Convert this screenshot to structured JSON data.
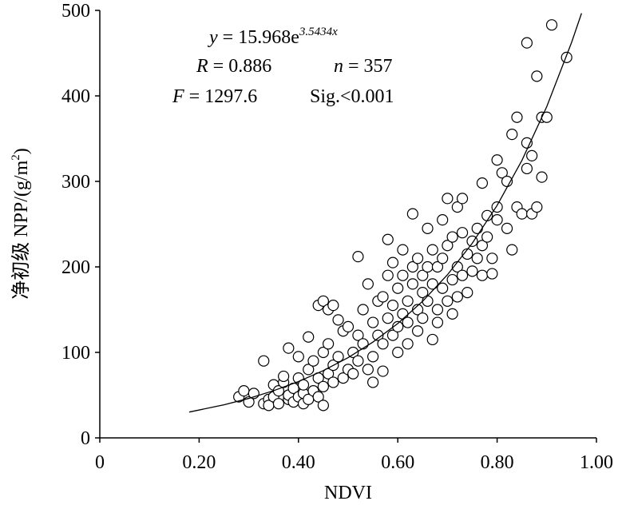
{
  "chart_data": {
    "type": "scatter",
    "equation_parts": [
      "y",
      " = 15.968e",
      "3.5434x"
    ],
    "stats_parts": [
      "R",
      " = 0.886",
      "n",
      " = 357"
    ],
    "test_parts": [
      "F",
      " = 1297.6",
      "Sig.<0.001"
    ],
    "xlabel": "NDVI",
    "ylabel_parts": [
      "净初级 NPP/(g/m",
      "2",
      ")"
    ],
    "xlim": [
      0,
      1
    ],
    "ylim": [
      0,
      500
    ],
    "xticks": [
      0,
      {
        "value": 0.2,
        "label": "0.20"
      },
      {
        "value": 0.4,
        "label": "0.40"
      },
      {
        "value": 0.6,
        "label": "0.60"
      },
      {
        "value": 0.8,
        "label": "0.80"
      },
      {
        "value": 1,
        "label": "1.00"
      }
    ],
    "yticks": [
      0,
      100,
      200,
      300,
      400,
      500
    ],
    "series": [
      {
        "kind": "points",
        "color": "#000000",
        "fill": "#ffffff",
        "x": [
          0.28,
          0.29,
          0.3,
          0.31,
          0.33,
          0.33,
          0.34,
          0.34,
          0.35,
          0.35,
          0.36,
          0.36,
          0.37,
          0.37,
          0.38,
          0.38,
          0.38,
          0.39,
          0.39,
          0.4,
          0.4,
          0.4,
          0.41,
          0.41,
          0.41,
          0.42,
          0.42,
          0.42,
          0.43,
          0.43,
          0.44,
          0.44,
          0.44,
          0.45,
          0.45,
          0.45,
          0.45,
          0.46,
          0.46,
          0.46,
          0.47,
          0.47,
          0.47,
          0.48,
          0.48,
          0.49,
          0.49,
          0.5,
          0.5,
          0.51,
          0.51,
          0.52,
          0.52,
          0.52,
          0.53,
          0.53,
          0.54,
          0.54,
          0.55,
          0.55,
          0.55,
          0.56,
          0.56,
          0.57,
          0.57,
          0.57,
          0.58,
          0.58,
          0.58,
          0.59,
          0.59,
          0.59,
          0.6,
          0.6,
          0.6,
          0.61,
          0.61,
          0.61,
          0.62,
          0.62,
          0.62,
          0.63,
          0.63,
          0.63,
          0.64,
          0.64,
          0.64,
          0.65,
          0.65,
          0.65,
          0.66,
          0.66,
          0.66,
          0.67,
          0.67,
          0.67,
          0.68,
          0.68,
          0.68,
          0.69,
          0.69,
          0.69,
          0.7,
          0.7,
          0.7,
          0.71,
          0.71,
          0.71,
          0.72,
          0.72,
          0.72,
          0.73,
          0.73,
          0.73,
          0.74,
          0.74,
          0.75,
          0.75,
          0.76,
          0.76,
          0.77,
          0.77,
          0.77,
          0.78,
          0.78,
          0.79,
          0.79,
          0.8,
          0.8,
          0.8,
          0.81,
          0.82,
          0.82,
          0.83,
          0.83,
          0.84,
          0.84,
          0.85,
          0.86,
          0.86,
          0.86,
          0.87,
          0.87,
          0.88,
          0.88,
          0.89,
          0.89,
          0.9,
          0.91,
          0.94
        ],
        "values": [
          48,
          55,
          42,
          52,
          40,
          90,
          45,
          38,
          48,
          62,
          40,
          55,
          65,
          72,
          45,
          50,
          105,
          58,
          42,
          48,
          70,
          95,
          52,
          40,
          62,
          80,
          118,
          45,
          55,
          90,
          48,
          70,
          155,
          38,
          60,
          100,
          160,
          75,
          110,
          150,
          65,
          85,
          155,
          95,
          138,
          70,
          125,
          80,
          130,
          100,
          75,
          212,
          120,
          90,
          150,
          110,
          80,
          180,
          135,
          95,
          65,
          160,
          120,
          78,
          165,
          110,
          232,
          140,
          190,
          120,
          205,
          155,
          130,
          175,
          100,
          145,
          220,
          190,
          110,
          160,
          135,
          262,
          180,
          200,
          150,
          125,
          210,
          170,
          190,
          140,
          160,
          200,
          245,
          115,
          180,
          220,
          150,
          200,
          135,
          255,
          175,
          210,
          280,
          160,
          225,
          185,
          145,
          235,
          200,
          165,
          270,
          190,
          240,
          280,
          215,
          170,
          230,
          195,
          245,
          210,
          298,
          225,
          190,
          260,
          235,
          210,
          192,
          325,
          270,
          255,
          310,
          245,
          300,
          355,
          220,
          375,
          270,
          262,
          345,
          462,
          315,
          330,
          262,
          423,
          270,
          375,
          305,
          375,
          483,
          445
        ]
      },
      {
        "kind": "curve",
        "color": "#000000",
        "x": [
          0.18,
          0.25,
          0.3,
          0.35,
          0.4,
          0.45,
          0.5,
          0.55,
          0.6,
          0.65,
          0.7,
          0.75,
          0.8,
          0.85,
          0.9,
          0.95,
          0.97
        ],
        "values": [
          30.2,
          38.7,
          46.2,
          55.2,
          65.9,
          78.7,
          93.9,
          112.1,
          133.8,
          159.8,
          190.8,
          227.7,
          271.9,
          324.6,
          387.5,
          462.6,
          496.6
        ]
      }
    ]
  }
}
